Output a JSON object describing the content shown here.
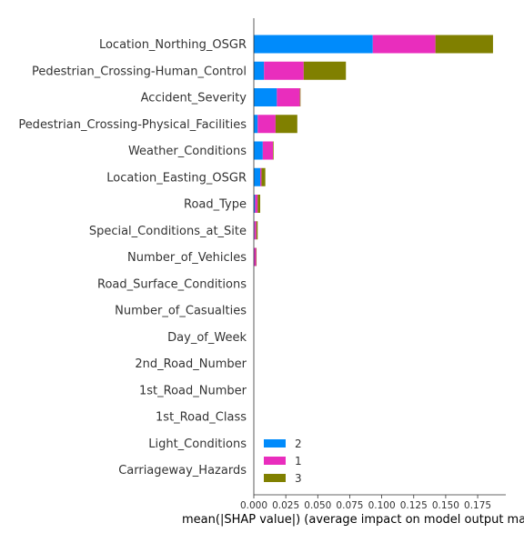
{
  "chart_data": {
    "type": "bar",
    "stacked": true,
    "orientation": "horizontal",
    "title": "",
    "xlabel": "mean(|SHAP value|) (average impact on model output magnitude)",
    "ylabel": "",
    "xlim": [
      0,
      0.197
    ],
    "xticks": [
      "0.000",
      "0.025",
      "0.050",
      "0.075",
      "0.100",
      "0.125",
      "0.150",
      "0.175"
    ],
    "categories": [
      "Location_Northing_OSGR",
      "Pedestrian_Crossing-Human_Control",
      "Accident_Severity",
      "Pedestrian_Crossing-Physical_Facilities",
      "Weather_Conditions",
      "Location_Easting_OSGR",
      "Road_Type",
      "Special_Conditions_at_Site",
      "Number_of_Vehicles",
      "Road_Surface_Conditions",
      "Number_of_Casualties",
      "Day_of_Week",
      "2nd_Road_Number",
      "1st_Road_Number",
      "1st_Road_Class",
      "Light_Conditions",
      "Carriageway_Hazards"
    ],
    "series": [
      {
        "name": "2",
        "color": "#008bfb",
        "values": [
          0.093,
          0.008,
          0.018,
          0.003,
          0.007,
          0.005,
          0.001,
          0.0005,
          0.0003,
          0,
          0,
          0,
          0,
          0,
          0,
          0,
          0
        ]
      },
      {
        "name": "1",
        "color": "#e92dbd",
        "values": [
          0.049,
          0.031,
          0.018,
          0.014,
          0.008,
          0.001,
          0.002,
          0.0015,
          0.0015,
          0,
          0,
          0,
          0,
          0,
          0,
          0,
          0
        ]
      },
      {
        "name": "3",
        "color": "#808000",
        "values": [
          0.045,
          0.033,
          0.0005,
          0.017,
          0.0005,
          0.003,
          0.002,
          0.001,
          0.0002,
          0,
          0,
          0,
          0,
          0,
          0,
          0,
          0
        ]
      }
    ],
    "legend": {
      "position": "bottom-left",
      "order": [
        "2",
        "1",
        "3"
      ]
    },
    "grid": false
  }
}
